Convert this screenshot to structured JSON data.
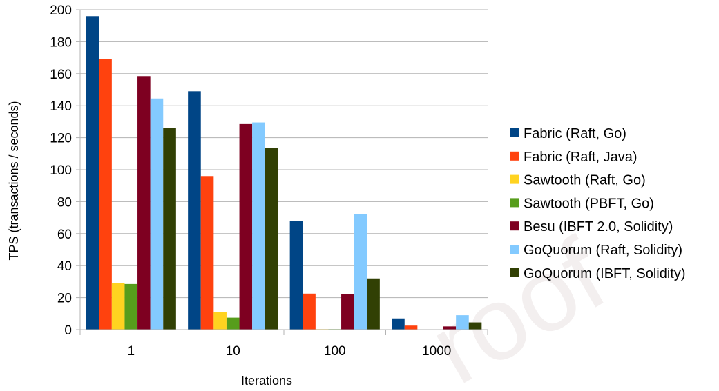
{
  "chart_data": {
    "type": "bar",
    "categories": [
      "1",
      "10",
      "100",
      "1000"
    ],
    "xlabel": "Iterations",
    "ylabel": "TPS (transactions / seconds)",
    "ylim": [
      0,
      200
    ],
    "yticks": [
      0,
      20,
      40,
      60,
      80,
      100,
      120,
      140,
      160,
      180,
      200
    ],
    "grid": true,
    "legend": "right",
    "series": [
      {
        "name": "Fabric (Raft, Go)",
        "color": "#004586",
        "values": [
          196,
          149,
          68,
          7
        ]
      },
      {
        "name": "Fabric (Raft, Java)",
        "color": "#ff420e",
        "values": [
          169,
          96,
          22.5,
          2.5
        ]
      },
      {
        "name": "Sawtooth (Raft, Go)",
        "color": "#ffd320",
        "values": [
          29,
          11,
          0.3,
          0.1
        ]
      },
      {
        "name": "Sawtooth (PBFT, Go)",
        "color": "#579d1c",
        "values": [
          28.5,
          7.5,
          0.3,
          0.1
        ]
      },
      {
        "name": "Besu (IBFT 2.0, Solidity)",
        "color": "#7e0021",
        "values": [
          158.5,
          128.5,
          22,
          2
        ]
      },
      {
        "name": "GoQuorum (Raft, Solidity)",
        "color": "#83caff",
        "values": [
          144.5,
          129.5,
          72,
          9
        ]
      },
      {
        "name": "GoQuorum (IBFT, Solidity)",
        "color": "#314004",
        "values": [
          126,
          113.5,
          32,
          4.5
        ]
      }
    ]
  },
  "watermark": {
    "text": "roof",
    "color": "#f3efef"
  }
}
